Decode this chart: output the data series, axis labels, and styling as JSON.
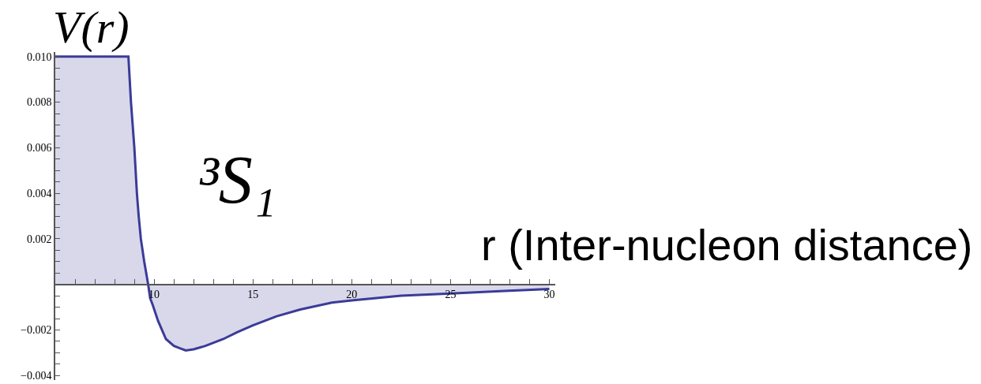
{
  "chart_data": {
    "type": "area",
    "xlabel": "r (Inter-nucleon distance)",
    "ylabel": "V(r)",
    "annotations": [
      "³S₁"
    ],
    "x": [
      5,
      8.7,
      8.83,
      9.0,
      9.13,
      9.22,
      9.33,
      9.5,
      9.7,
      9.8,
      9.93,
      10.2,
      10.6,
      11.0,
      11.3,
      11.6,
      12.0,
      12.6,
      13.5,
      14.2,
      15,
      16.2,
      17.4,
      19,
      20,
      22.5,
      25,
      27.5,
      30
    ],
    "series": [
      {
        "color": "#3b3b98",
        "values": [
          0.01,
          0.01,
          0.008,
          0.006,
          0.004,
          0.003,
          0.002,
          0.001,
          0.0,
          -0.0006,
          -0.0009,
          -0.0016,
          -0.0024,
          -0.0027,
          -0.0028,
          -0.0029,
          -0.00285,
          -0.0027,
          -0.0024,
          -0.0021,
          -0.0018,
          -0.0014,
          -0.0011,
          -0.0008,
          -0.0007,
          -0.0005,
          -0.0004,
          -0.0003,
          -0.0002
        ]
      }
    ],
    "xlim": [
      5,
      30.3
    ],
    "ylim": [
      -0.0042,
      0.0102
    ],
    "xticks": [
      {
        "value": 6,
        "label": null
      },
      {
        "value": 7,
        "label": null
      },
      {
        "value": 8,
        "label": null
      },
      {
        "value": 9,
        "label": null
      },
      10,
      {
        "value": 11,
        "label": null
      },
      {
        "value": 12,
        "label": null
      },
      {
        "value": 13,
        "label": null
      },
      {
        "value": 14,
        "label": null
      },
      15,
      {
        "value": 16,
        "label": null
      },
      {
        "value": 17,
        "label": null
      },
      {
        "value": 18,
        "label": null
      },
      {
        "value": 19,
        "label": null
      },
      20,
      {
        "value": 21,
        "label": null
      },
      {
        "value": 22,
        "label": null
      },
      {
        "value": 23,
        "label": null
      },
      {
        "value": 24,
        "label": null
      },
      25,
      {
        "value": 26,
        "label": null
      },
      {
        "value": 27,
        "label": null
      },
      {
        "value": 28,
        "label": null
      },
      {
        "value": 29,
        "label": null
      },
      30
    ],
    "yticks": [
      -0.004,
      {
        "value": -0.0035,
        "label": null
      },
      {
        "value": -0.003,
        "label": null
      },
      {
        "value": -0.0025,
        "label": null
      },
      -0.002,
      {
        "value": -0.0015,
        "label": null
      },
      {
        "value": -0.001,
        "label": null
      },
      {
        "value": -0.0005,
        "label": null
      },
      {
        "value": 0.0005,
        "label": null
      },
      {
        "value": 0.001,
        "label": null
      },
      {
        "value": 0.0015,
        "label": null
      },
      0.002,
      {
        "value": 0.0025,
        "label": null
      },
      {
        "value": 0.003,
        "label": null
      },
      {
        "value": 0.0035,
        "label": null
      },
      0.004,
      {
        "value": 0.0045,
        "label": null
      },
      {
        "value": 0.005,
        "label": null
      },
      {
        "value": 0.0055,
        "label": null
      },
      0.006,
      {
        "value": 0.0065,
        "label": null
      },
      {
        "value": 0.007,
        "label": null
      },
      {
        "value": 0.0075,
        "label": null
      },
      0.008,
      {
        "value": 0.0085,
        "label": null
      },
      {
        "value": 0.009,
        "label": null
      },
      {
        "value": 0.0095,
        "label": null
      },
      {
        "value": 0.01,
        "label": "0.010"
      }
    ]
  }
}
